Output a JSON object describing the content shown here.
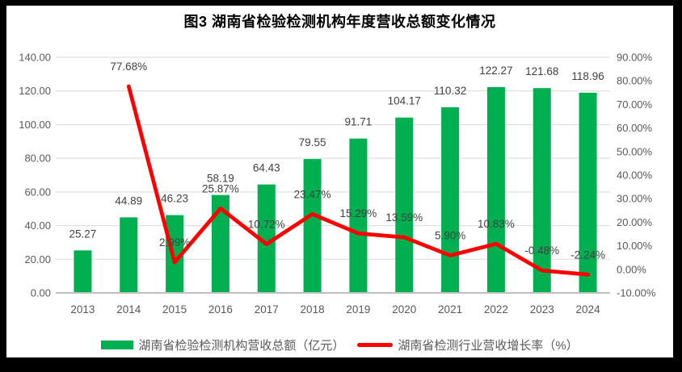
{
  "chart_data": {
    "type": "combo",
    "title": "图3 湖南省检验检测机构年度营收总额变化情况",
    "categories": [
      "2013",
      "2014",
      "2015",
      "2016",
      "2017",
      "2018",
      "2019",
      "2020",
      "2021",
      "2022",
      "2023",
      "2024"
    ],
    "series": [
      {
        "name": "湖南省检验检测机构营收总额（亿元）",
        "type": "bar",
        "axis": "left",
        "color": "#00B050",
        "values": [
          25.27,
          44.89,
          46.23,
          58.19,
          64.43,
          79.55,
          91.71,
          104.17,
          110.32,
          122.27,
          121.68,
          118.96
        ],
        "labels": [
          "25.27",
          "44.89",
          "46.23",
          "58.19",
          "64.43",
          "79.55",
          "91.71",
          "104.17",
          "110.32",
          "122.27",
          "121.68",
          "118.96"
        ]
      },
      {
        "name": "湖南省检测行业营收增长率（%）",
        "type": "line",
        "axis": "right",
        "color": "#FF0000",
        "values": [
          null,
          77.68,
          2.99,
          25.87,
          10.72,
          23.47,
          15.29,
          13.59,
          5.9,
          10.83,
          -0.48,
          -2.24
        ],
        "labels": [
          null,
          "77.68%",
          "2.99%",
          "25.87%",
          "10.72%",
          "23.47%",
          "15.29%",
          "13.59%",
          "5.90%",
          "10.83%",
          "-0.48%",
          "-2.24%"
        ]
      }
    ],
    "left_axis": {
      "min": 0,
      "max": 140,
      "step": 20,
      "tick_labels": [
        "140.00",
        "120.00",
        "100.00",
        "80.00",
        "60.00",
        "40.00",
        "20.00",
        "0.00"
      ]
    },
    "right_axis": {
      "min": -10,
      "max": 90,
      "step": 10,
      "tick_labels": [
        "90.00%",
        "80.00%",
        "70.00%",
        "60.00%",
        "50.00%",
        "40.00%",
        "30.00%",
        "20.00%",
        "10.00%",
        "0.00%",
        "-10.00%"
      ]
    },
    "grid": true,
    "legend_position": "bottom"
  },
  "styles": {
    "frame_border": "#000000",
    "background": "#FFFFFF",
    "gridline_color": "#D9D9D9",
    "axis_line_color": "#BFBFBF",
    "tick_label_color": "#595959",
    "data_label_color": "#404040",
    "title_color": "#000000",
    "legend_text_color": "#595959"
  }
}
